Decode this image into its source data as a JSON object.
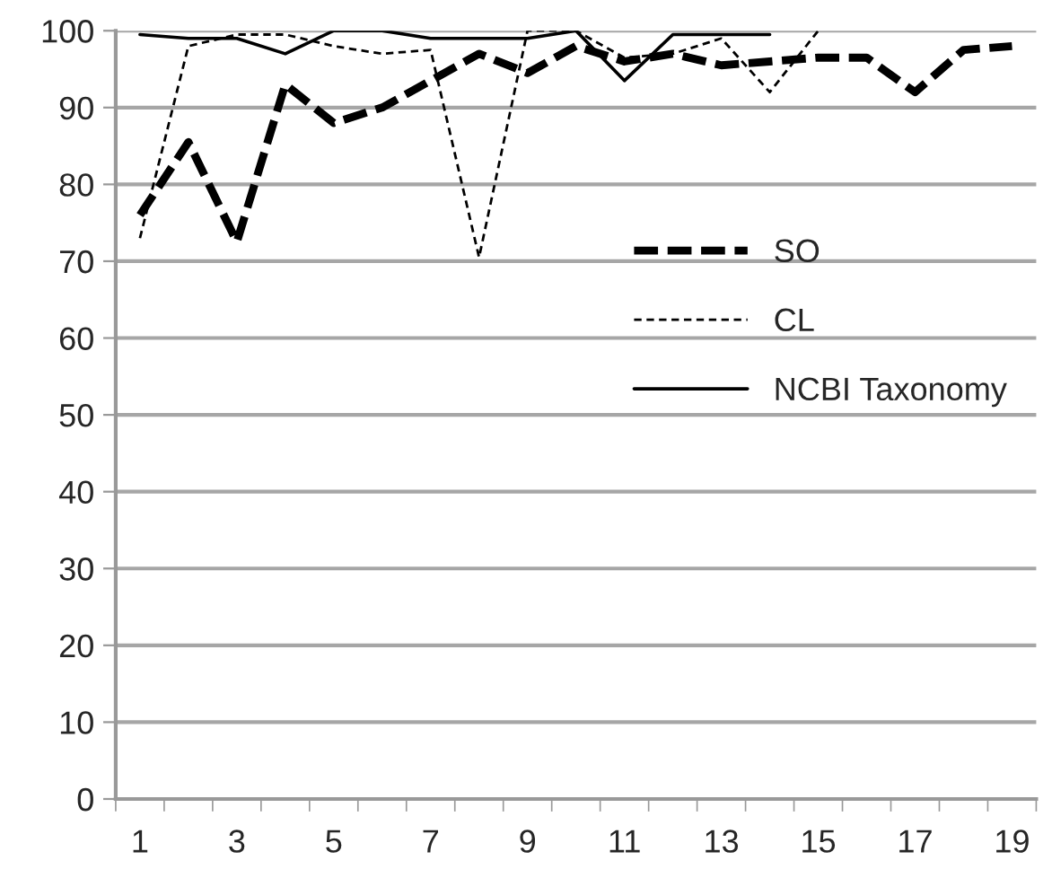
{
  "chart_data": {
    "type": "line",
    "categories": [
      "1",
      null,
      "3",
      null,
      "5",
      null,
      "7",
      null,
      "9",
      null,
      "11",
      null,
      "13",
      null,
      "15",
      null,
      "17",
      null,
      "19"
    ],
    "series": [
      {
        "name": "SO",
        "color": "#000000",
        "line_style": "dashed",
        "values": [
          76,
          85.5,
          72.5,
          93,
          88,
          90,
          93.5,
          97,
          94.5,
          98,
          96,
          97,
          95.5,
          96,
          96.5,
          96.5,
          92,
          97.5,
          98
        ]
      },
      {
        "name": "CL",
        "color": "#000000",
        "line_style": "dotted",
        "values": [
          73,
          98,
          99.5,
          99.5,
          98,
          97,
          97.5,
          70.5,
          100,
          100,
          96.5,
          97,
          99,
          92,
          100,
          null,
          null,
          null,
          null
        ]
      },
      {
        "name": "NCBI Taxonomy",
        "color": "#000000",
        "line_style": "solid",
        "values": [
          99.5,
          99,
          99,
          97,
          100,
          100,
          99,
          99,
          99,
          100,
          93.5,
          99.5,
          99.5,
          99.5,
          null,
          null,
          null,
          null,
          null
        ]
      }
    ],
    "ylim": [
      0,
      100
    ],
    "yticks": [
      0,
      10,
      20,
      30,
      40,
      50,
      60,
      70,
      80,
      90,
      100
    ],
    "grid": "y",
    "legend": "right",
    "marker": "none"
  }
}
